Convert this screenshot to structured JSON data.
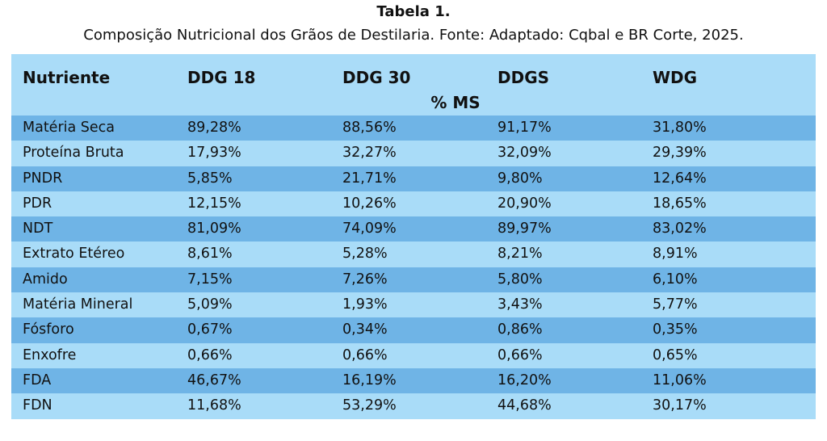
{
  "caption": {
    "title": "Tabela 1.",
    "subtitle": "Composição Nutricional dos Grãos de Destilaria. Fonte: Adaptado: Cqbal e BR Corte, 2025."
  },
  "table": {
    "headers": [
      "Nutriente",
      "DDG 18",
      "DDG 30",
      "DDGS",
      "WDG"
    ],
    "unit": "% MS",
    "rows": [
      [
        "Matéria Seca",
        "89,28%",
        "88,56%",
        "91,17%",
        "31,80%"
      ],
      [
        "Proteína Bruta",
        "17,93%",
        "32,27%",
        "32,09%",
        "29,39%"
      ],
      [
        "PNDR",
        "5,85%",
        "21,71%",
        "9,80%",
        "12,64%"
      ],
      [
        "PDR",
        "12,15%",
        "10,26%",
        "20,90%",
        "18,65%"
      ],
      [
        "NDT",
        "81,09%",
        "74,09%",
        "89,97%",
        "83,02%"
      ],
      [
        "Extrato Etéreo",
        "8,61%",
        "5,28%",
        "8,21%",
        "8,91%"
      ],
      [
        "Amido",
        "7,15%",
        "7,26%",
        "5,80%",
        "6,10%"
      ],
      [
        "Matéria Mineral",
        "5,09%",
        "1,93%",
        "3,43%",
        "5,77%"
      ],
      [
        "Fósforo",
        "0,67%",
        "0,34%",
        "0,86%",
        "0,35%"
      ],
      [
        "Enxofre",
        "0,66%",
        "0,66%",
        "0,66%",
        "0,65%"
      ],
      [
        "FDA",
        "46,67%",
        "16,19%",
        "16,20%",
        "11,06%"
      ],
      [
        "FDN",
        "11,68%",
        "53,29%",
        "44,68%",
        "30,17%"
      ]
    ]
  },
  "colors": {
    "header_bg": "#aadcf8",
    "row_dark": "#6fb4e6",
    "row_light": "#a9dcf8"
  }
}
